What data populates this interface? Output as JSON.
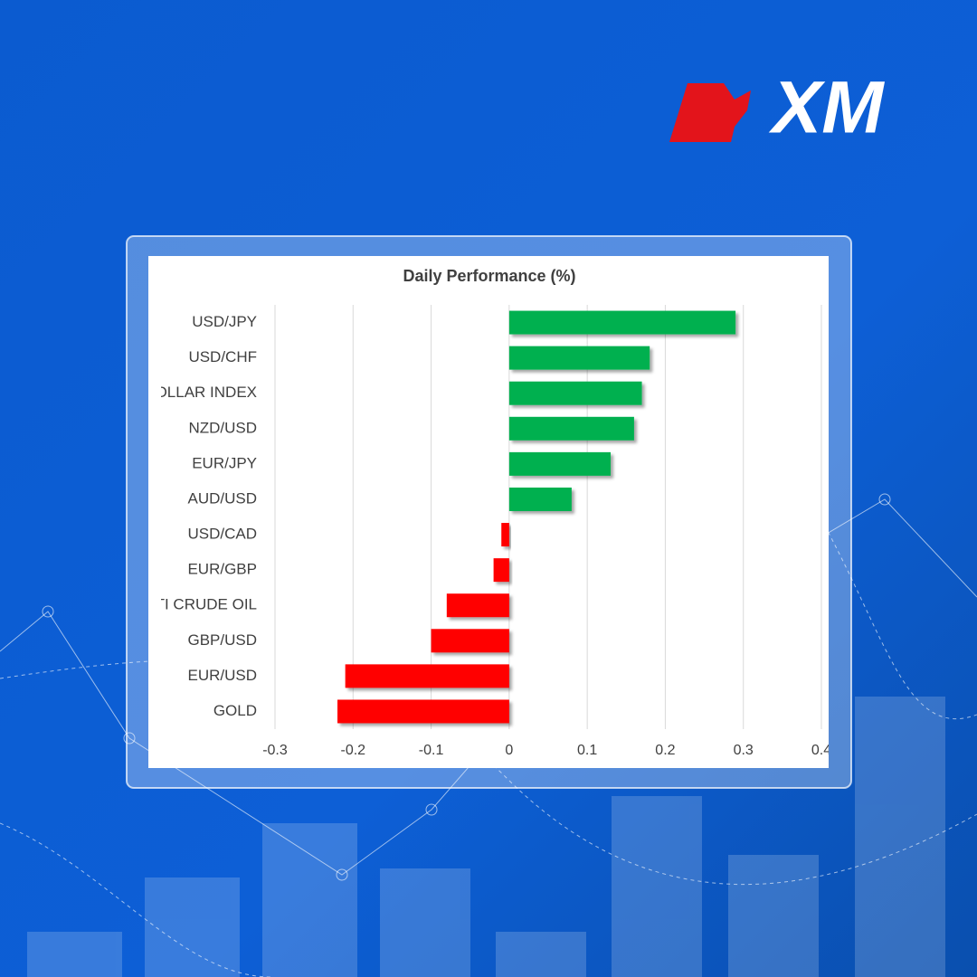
{
  "logo": "XM",
  "chart_data": {
    "type": "bar",
    "orientation": "horizontal",
    "title": "Daily Performance (%)",
    "categories": [
      "USD/JPY",
      "USD/CHF",
      "DOLLAR INDEX",
      "NZD/USD",
      "EUR/JPY",
      "AUD/USD",
      "USD/CAD",
      "EUR/GBP",
      "WTI CRUDE OIL",
      "GBP/USD",
      "EUR/USD",
      "GOLD"
    ],
    "values": [
      0.29,
      0.18,
      0.17,
      0.16,
      0.13,
      0.08,
      -0.01,
      -0.02,
      -0.08,
      -0.1,
      -0.21,
      -0.22
    ],
    "positive_color": "#00b050",
    "negative_color": "#ff0000",
    "xlim": [
      -0.3,
      0.4
    ],
    "xticks": [
      -0.3,
      -0.2,
      -0.1,
      0,
      0.1,
      0.2,
      0.3,
      0.4
    ],
    "grid": true
  }
}
